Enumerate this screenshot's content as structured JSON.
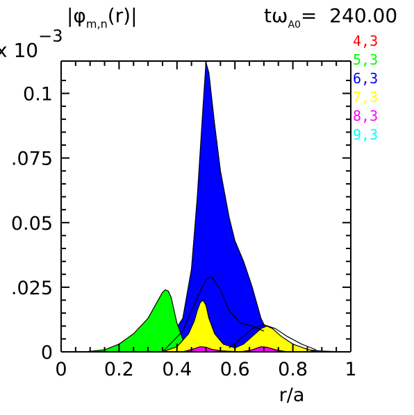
{
  "header": {
    "title_prefix": "|φ",
    "title_sub": "m,n",
    "title_suffix": "(r)|",
    "time_label": "tω",
    "time_sub": "A0",
    "time_value": "=  240.00",
    "exponent_base": "x 10",
    "exponent_power": "−3"
  },
  "chart_data": {
    "type": "area",
    "xlabel": "r/a",
    "ylabel": "",
    "xlim": [
      0,
      1
    ],
    "ylim": [
      0,
      0.1125
    ],
    "xticks": [
      "0",
      "0.2",
      "0.4",
      "0.6",
      "0.8",
      "1"
    ],
    "xtick_values": [
      0,
      0.2,
      0.4,
      0.6,
      0.8,
      1
    ],
    "yticks": [
      "0",
      ".025",
      "0.05",
      ".075",
      "0.1"
    ],
    "ytick_values": [
      0,
      0.025,
      0.05,
      0.075,
      0.1
    ],
    "series": [
      {
        "name": "6,3",
        "color": "#0000ff",
        "x": [
          0.08,
          0.2,
          0.3,
          0.38,
          0.42,
          0.45,
          0.47,
          0.49,
          0.5,
          0.51,
          0.53,
          0.55,
          0.58,
          0.6,
          0.63,
          0.66,
          0.69,
          0.72,
          0.76,
          0.8,
          0.85,
          0.9,
          0.97
        ],
        "y": [
          0,
          0.0003,
          0.0015,
          0.006,
          0.013,
          0.032,
          0.06,
          0.095,
          0.112,
          0.108,
          0.088,
          0.07,
          0.052,
          0.043,
          0.035,
          0.025,
          0.013,
          0.006,
          0.003,
          0.0015,
          0.0008,
          0.0003,
          0
        ]
      },
      {
        "name": "5,3",
        "color": "#00ff00",
        "x": [
          0.08,
          0.15,
          0.2,
          0.25,
          0.3,
          0.33,
          0.35,
          0.36,
          0.37,
          0.38,
          0.39,
          0.4,
          0.42,
          0.45,
          0.5,
          0.55,
          0.6
        ],
        "y": [
          0,
          0.0008,
          0.003,
          0.007,
          0.013,
          0.019,
          0.023,
          0.024,
          0.0235,
          0.021,
          0.016,
          0.011,
          0.005,
          0.002,
          0.0008,
          0.0003,
          0
        ]
      },
      {
        "name": "7,3",
        "color": "#ffff00",
        "x": [
          0.35,
          0.4,
          0.44,
          0.46,
          0.47,
          0.48,
          0.49,
          0.5,
          0.51,
          0.53,
          0.56,
          0.6,
          0.63,
          0.66,
          0.69,
          0.71,
          0.73,
          0.76,
          0.8,
          0.85,
          0.88
        ],
        "y": [
          0,
          0.002,
          0.007,
          0.012,
          0.016,
          0.019,
          0.02,
          0.018,
          0.013,
          0.007,
          0.003,
          0.0015,
          0.003,
          0.006,
          0.009,
          0.01,
          0.009,
          0.006,
          0.003,
          0.001,
          0
        ]
      },
      {
        "name": "8,3",
        "color": "#ff00ff",
        "x": [
          0.42,
          0.46,
          0.48,
          0.5,
          0.52,
          0.55,
          0.62,
          0.66,
          0.69,
          0.71,
          0.74,
          0.78
        ],
        "y": [
          0,
          0.0012,
          0.002,
          0.0018,
          0.001,
          0.0004,
          0,
          0.0008,
          0.002,
          0.0018,
          0.0008,
          0
        ]
      },
      {
        "name": "9,3",
        "color": "#00ffff",
        "x": [
          0.6,
          0.7,
          0.8
        ],
        "y": [
          0,
          0.0001,
          0
        ]
      },
      {
        "name": "4,3",
        "color": "#ff0000",
        "x": [
          0.4,
          0.5,
          0.6
        ],
        "y": [
          0,
          0.0001,
          0
        ]
      }
    ],
    "line_overlays": [
      {
        "name": "outline-1",
        "x": [
          0.35,
          0.42,
          0.47,
          0.5,
          0.52,
          0.55,
          0.58,
          0.62,
          0.66,
          0.7
        ],
        "y": [
          0,
          0.008,
          0.021,
          0.028,
          0.029,
          0.024,
          0.016,
          0.011,
          0.01,
          0.008
        ]
      },
      {
        "name": "outline-2",
        "x": [
          0.58,
          0.63,
          0.66,
          0.7,
          0.74,
          0.78,
          0.83,
          0.88
        ],
        "y": [
          0.0015,
          0.006,
          0.009,
          0.0105,
          0.009,
          0.006,
          0.003,
          0.0008
        ]
      }
    ],
    "legend": {
      "placement": "top-right",
      "entries": [
        {
          "label": "4,3",
          "color": "#ff0000"
        },
        {
          "label": "5,3",
          "color": "#00ff00"
        },
        {
          "label": "6,3",
          "color": "#0000ff"
        },
        {
          "label": "7,3",
          "color": "#ffff00"
        },
        {
          "label": "8,3",
          "color": "#ff00ff"
        },
        {
          "label": "9,3",
          "color": "#00ffff"
        }
      ]
    }
  }
}
